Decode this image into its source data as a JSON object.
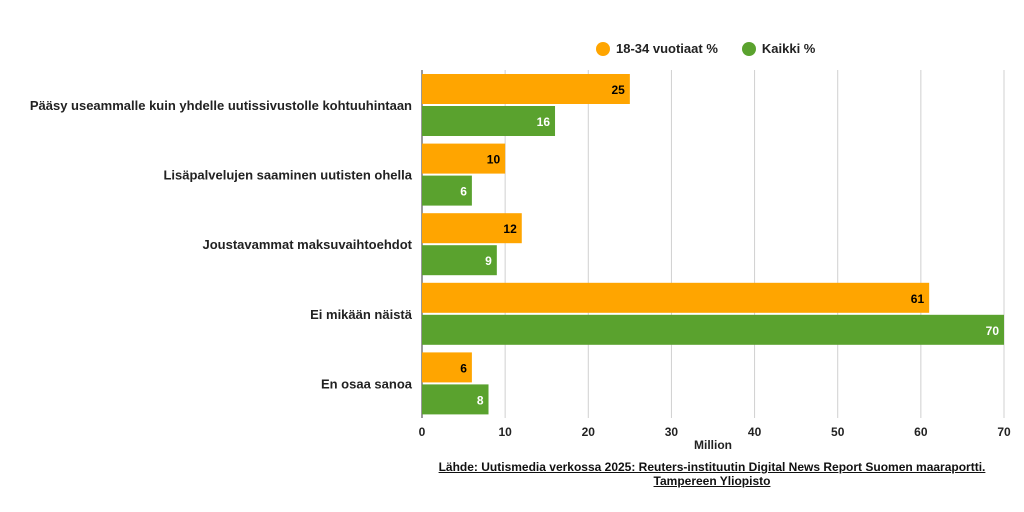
{
  "chart_data": {
    "type": "bar",
    "orientation": "horizontal",
    "categories": [
      "Pääsy useammalle kuin yhdelle uutissivustolle kohtuuhintaan",
      "Lisäpalvelujen saaminen uutisten ohella",
      "Joustavammat maksuvaihtoehdot",
      "Ei mikään näistä",
      "En osaa sanoa"
    ],
    "series": [
      {
        "name": "18-34 vuotiaat %",
        "color": "#FFA500",
        "label_color": "#000000",
        "values": [
          25,
          10,
          12,
          61,
          6
        ]
      },
      {
        "name": "Kaikki %",
        "color": "#5AA22E",
        "label_color": "#ffffff",
        "values": [
          16,
          6,
          9,
          70,
          8
        ]
      }
    ],
    "xlabel": "Million",
    "xlim": [
      0,
      70
    ],
    "xticks": [
      0,
      10,
      20,
      30,
      40,
      50,
      60,
      70
    ],
    "grid": true,
    "legend_position": "top-right"
  },
  "source": {
    "line1": "Lähde: Uutismedia verkossa 2025: Reuters-instituutin Digital News Report Suomen maaraportti.",
    "line2": "Tampereen Yliopisto"
  }
}
